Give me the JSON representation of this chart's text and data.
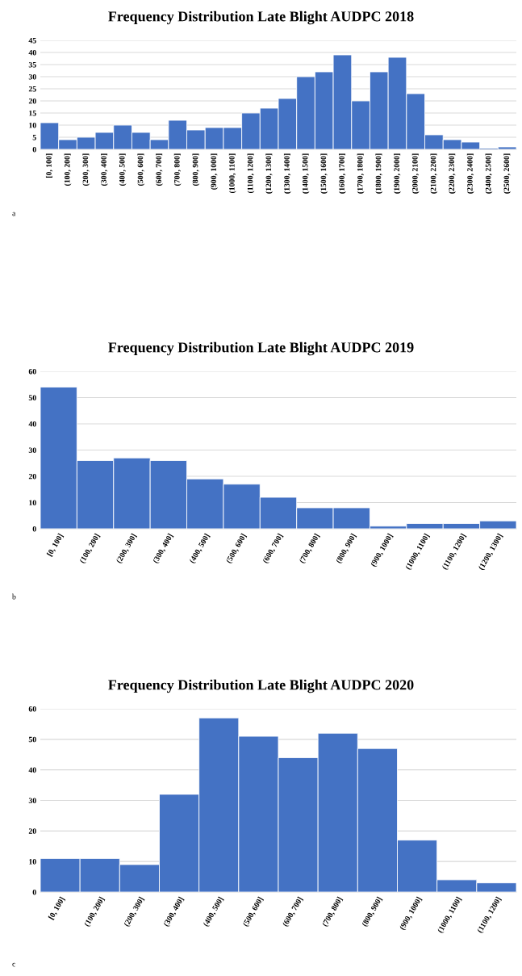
{
  "chart_data": [
    {
      "type": "bar",
      "title": "Frequency Distribution Late Blight AUDPC 2018",
      "annotations": [
        "a"
      ],
      "categories": [
        "[0, 100]",
        "(100, 200]",
        "(200, 300]",
        "(300, 400]",
        "(400, 500]",
        "(500, 600]",
        "(600, 700]",
        "(700, 800]",
        "(800, 900]",
        "(900, 1000]",
        "(1000, 1100]",
        "(1100, 1200]",
        "(1200, 1300]",
        "(1300, 1400]",
        "(1400, 1500]",
        "(1500, 1600]",
        "(1600, 1700]",
        "(1700, 1800]",
        "(1800, 1900]",
        "(1900, 2000]",
        "(2000, 2100]",
        "(2100, 2200]",
        "(2200, 2300]",
        "(2300, 2400]",
        "(2400, 2500]",
        "(2500, 2600]"
      ],
      "values": [
        11,
        4,
        5,
        7,
        10,
        7,
        4,
        12,
        8,
        9,
        9,
        15,
        17,
        21,
        30,
        32,
        39,
        20,
        32,
        38,
        23,
        6,
        4,
        3,
        0,
        1
      ],
      "color": "#4472c4",
      "ylim": [
        0,
        45
      ],
      "yticks": [
        0,
        5,
        10,
        15,
        20,
        25,
        30,
        35,
        40,
        45
      ],
      "grid": "y"
    },
    {
      "type": "bar",
      "title": "Frequency Distribution Late Blight AUDPC 2019",
      "annotations": [
        "b"
      ],
      "categories": [
        "[0, 100]",
        "(100, 200]",
        "(200, 300]",
        "(300, 400]",
        "(400, 500]",
        "(500, 600]",
        "(600, 700]",
        "(700, 800]",
        "(800, 900]",
        "(900, 1000]",
        "(1000, 1100]",
        "(1100, 1200]",
        "(1200, 1300]"
      ],
      "values": [
        54,
        26,
        27,
        26,
        19,
        17,
        12,
        8,
        8,
        1,
        2,
        2,
        3
      ],
      "color": "#4472c4",
      "ylim": [
        0,
        60
      ],
      "yticks": [
        0,
        10,
        20,
        30,
        40,
        50,
        60
      ],
      "grid": "y"
    },
    {
      "type": "bar",
      "title": "Frequency Distribution Late Blight AUDPC 2020",
      "annotations": [
        "c"
      ],
      "categories": [
        "[0, 100]",
        "(100, 200]",
        "(200, 300]",
        "(300, 400]",
        "(400, 500]",
        "(500, 600]",
        "(600, 700]",
        "(700, 800]",
        "(800, 900]",
        "(900, 1000]",
        "(1000, 1100]",
        "(1100, 1200]"
      ],
      "values": [
        11,
        11,
        9,
        32,
        57,
        51,
        44,
        52,
        47,
        17,
        4,
        3
      ],
      "color": "#4472c4",
      "ylim": [
        0,
        60
      ],
      "yticks": [
        0,
        10,
        20,
        30,
        40,
        50,
        60
      ],
      "grid": "y"
    }
  ]
}
